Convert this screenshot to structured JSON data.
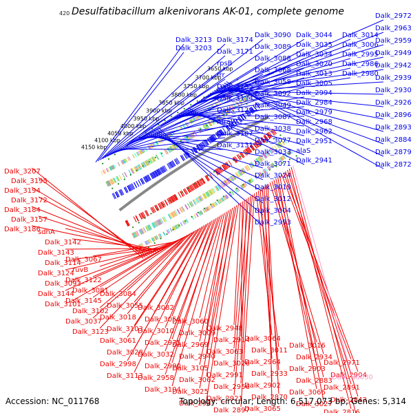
{
  "header": {
    "title": "Desulfatibacillum alkenivorans AK-01, complete genome",
    "corner_number": "420"
  },
  "footer": {
    "accession": "Accession: NC_011768",
    "summary": "Topology: circular; Length: 6,517,073 bp; Genes: 5,314"
  },
  "colors": {
    "backbone": "#888888",
    "forward_strand": "#0000ee",
    "reverse_strand": "#ee0000",
    "rna_label": "#ff99cc",
    "dots": "#228822"
  },
  "chart_data": {
    "type": "circular-genome-map",
    "kbp_ticks": [
      {
        "label": "4150 kbp",
        "kbp": 4150
      },
      {
        "label": "4100 kbp",
        "kbp": 4100
      },
      {
        "label": "4050 kbp",
        "kbp": 4050
      },
      {
        "label": "4000 kbp",
        "kbp": 4000
      },
      {
        "label": "3950 kbp",
        "kbp": 3950
      },
      {
        "label": "3900 kbp",
        "kbp": 3900
      },
      {
        "label": "3850 kbp",
        "kbp": 3850
      },
      {
        "label": "3800 kbp",
        "kbp": 3800
      },
      {
        "label": "3750 kbp",
        "kbp": 3750
      },
      {
        "label": "3700 kbp",
        "kbp": 3700
      },
      {
        "label": "3650 kbp",
        "kbp": 3650
      }
    ],
    "forward_labels": [
      "Dalk_3213",
      "Dalk_3203",
      "Dalk_3174",
      "Dalk_3171",
      "rpsB",
      "frr",
      "Dalk_3135",
      "Dalk_3134",
      "Dalk_3129",
      "mraW",
      "Dalk_3107",
      "Dalk_3131",
      "Dalk_3090",
      "Dalk_3089",
      "Dalk_3088",
      "Dalk_3068",
      "Dalk_3058",
      "Dalk_3092",
      "Dalk_3049",
      "Dalk_3087",
      "Dalk_3038",
      "Dalk_3077",
      "Dalk_3033",
      "Dalk_3071",
      "Dalk_3024",
      "Dalk_3019",
      "Dalk_3012",
      "Dalk_3004",
      "Dalk_2993",
      "Dalk_3044",
      "Dalk_3035",
      "Dalk_3034",
      "Dalk_3020",
      "Dalk_3013",
      "Dalk_3005",
      "Dalk_2994",
      "Dalk_2984",
      "Dalk_2979",
      "Dalk_2968",
      "Dalk_2962",
      "Dalk_2951",
      "alaS",
      "Dalk_2941",
      "Dalk_3014",
      "Dalk_3006",
      "Dalk_2995",
      "Dalk_2986",
      "Dalk_2980",
      "Dalk_2972",
      "Dalk_2963",
      "Dalk_2959",
      "Dalk_2949",
      "Dalk_2942",
      "Dalk_2939",
      "Dalk_2930",
      "Dalk_2926",
      "Dalk_2896",
      "Dalk_2893",
      "Dalk_2884",
      "Dalk_2879",
      "Dalk_2872"
    ],
    "reverse_labels": [
      "Dalk_3207",
      "Dalk_3195",
      "Dalk_3194",
      "Dalk_3172",
      "Dalk_3184",
      "Dalk_3157",
      "Dalk_3186",
      "sdhA",
      "Dalk_3142",
      "Dalk_3143",
      "Dalk_3114",
      "Dalk_3124",
      "Dalk_3093",
      "Dalk_3144",
      "Dalk_3101",
      "Dalk_3067",
      "ruvB",
      "Dalk_3122",
      "Dalk_3081",
      "Dalk_3145",
      "Dalk_3102",
      "Dalk_3037",
      "Dalk_3123",
      "Dalk_3084",
      "Dalk_3055",
      "Dalk_3018",
      "Dalk_3103",
      "Dalk_3061",
      "Dalk_3028",
      "Dalk_2998",
      "Dalk_3113",
      "Dalk_3082",
      "Dalk_3056",
      "Dalk_3010",
      "Dalk_2975",
      "Dalk_3032",
      "Dalk_2990",
      "Dalk_2958",
      "Dalk_3104",
      "Dalk_3060",
      "Dalk_3009",
      "Dalk_2969",
      "Dalk_2940",
      "Dalk_3105",
      "Dalk_3062",
      "Dalk_3025",
      "Dalk_2987",
      "Dalk_2948",
      "Dalk_2914",
      "Dalk_3063",
      "Dalk_3026",
      "Dalk_2991",
      "Dalk_2956",
      "Dalk_2921",
      "Dalk_2897",
      "Dalk_3064",
      "Dalk_3011",
      "Dalk_2964",
      "Dalk_2933",
      "Dalk_2902",
      "Dalk_2870",
      "Dalk_3065",
      "Dalk_3016",
      "Dalk_2934",
      "Dalk_2903",
      "Dalk_2883",
      "Dalk_3066",
      "Dalk_3027",
      "Dalk_2971",
      "Dalk_2904",
      "Dalk_2891",
      "Dalk_2843",
      "Dalk_2816",
      "Dalk_2992"
    ],
    "rna_labels": [
      "Dalk_R0030"
    ]
  }
}
